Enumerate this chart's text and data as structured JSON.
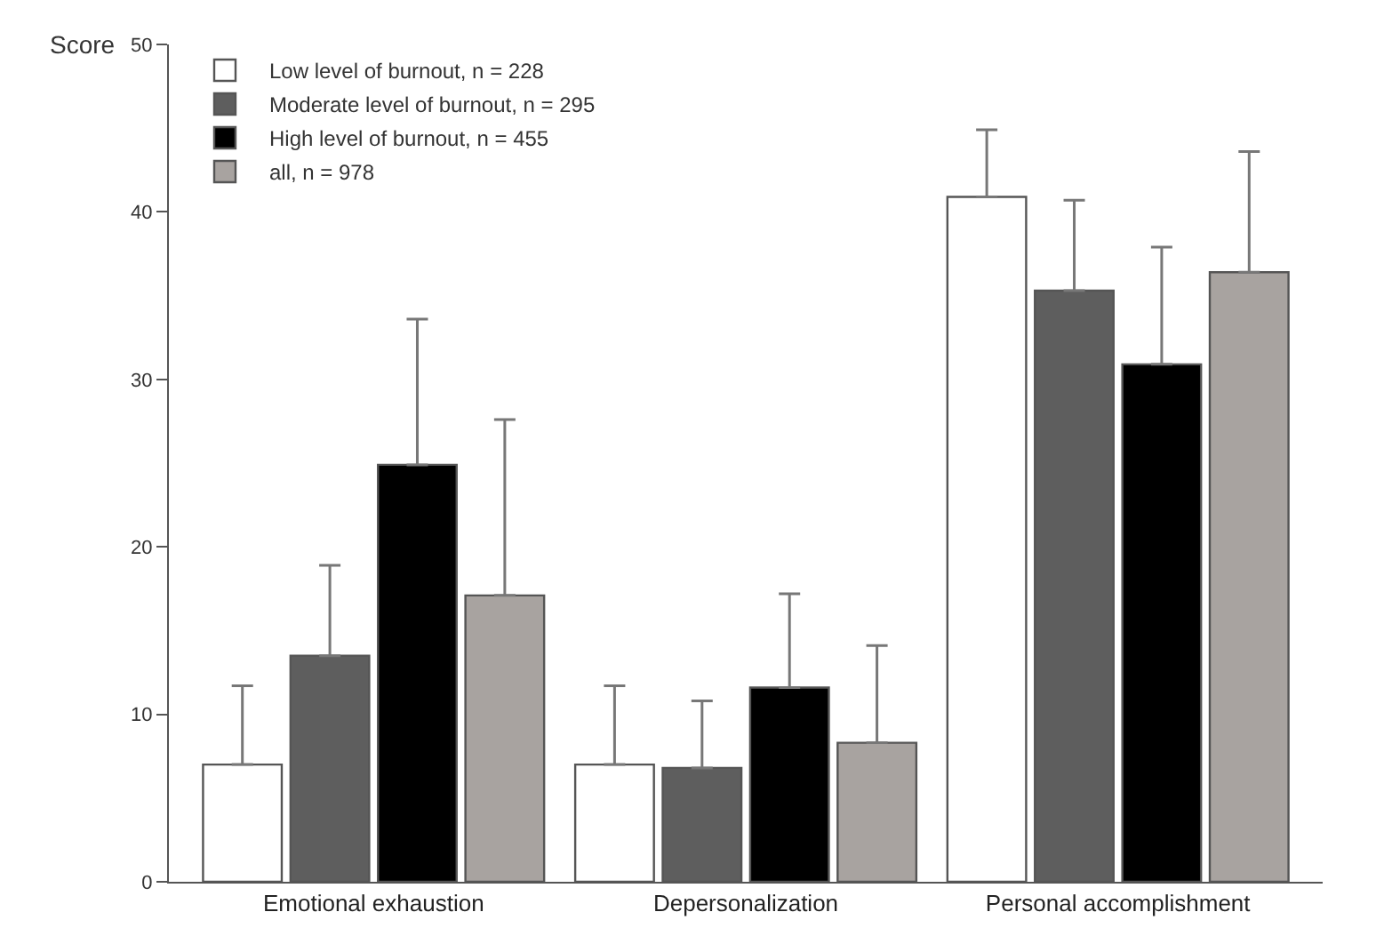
{
  "chart_data": {
    "type": "bar",
    "ylabel": "Score",
    "categories": [
      "Emotional exhaustion",
      "Depersonalization",
      "Personal accomplishment"
    ],
    "series": [
      {
        "name": "Low level of burnout, n = 228",
        "color": "#ffffff",
        "values": [
          7.0,
          7.0,
          40.9
        ],
        "errors": [
          [
            7.0,
            11.7
          ],
          [
            7.0,
            11.7
          ],
          [
            40.9,
            44.9
          ]
        ]
      },
      {
        "name": "Moderate level of burnout, n = 295",
        "color": "#5e5e5e",
        "values": [
          13.5,
          6.8,
          35.3
        ],
        "errors": [
          [
            13.5,
            18.9
          ],
          [
            6.8,
            10.8
          ],
          [
            35.3,
            40.7
          ]
        ]
      },
      {
        "name": "High level of burnout, n = 455",
        "color": "#000000",
        "values": [
          24.9,
          11.6,
          30.9
        ],
        "errors": [
          [
            24.9,
            33.6
          ],
          [
            11.6,
            17.2
          ],
          [
            30.9,
            37.9
          ]
        ]
      },
      {
        "name": "all, n = 978",
        "color": "#a8a3a0",
        "values": [
          17.1,
          8.3,
          36.4
        ],
        "errors": [
          [
            17.1,
            27.6
          ],
          [
            8.3,
            14.1
          ],
          [
            36.4,
            43.6
          ]
        ]
      }
    ],
    "ylim": [
      0,
      50
    ],
    "yticks": [
      0,
      10,
      20,
      30,
      40,
      50
    ],
    "legend": "top left"
  }
}
